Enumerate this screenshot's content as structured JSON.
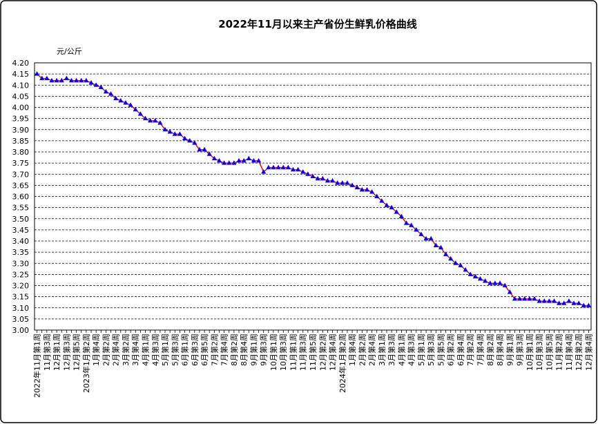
{
  "chart_data": {
    "type": "line",
    "title": "2022年11月以来主产省份生鲜乳价格曲线",
    "y_unit": "元/公斤",
    "color": "#ff0000",
    "marker_color": "#0000ff",
    "grid": true,
    "ylim": [
      3,
      4.2
    ],
    "yticks": [
      {
        "value": 3,
        "label": "3.00"
      },
      3.05,
      {
        "value": 3.1,
        "label": "3.10"
      },
      3.15,
      {
        "value": 3.2,
        "label": "3.20"
      },
      3.25,
      {
        "value": 3.3,
        "label": "3.30"
      },
      3.35,
      {
        "value": 3.4,
        "label": "3.40"
      },
      3.45,
      {
        "value": 3.5,
        "label": "3.50"
      },
      3.55,
      {
        "value": 3.6,
        "label": "3.60"
      },
      3.65,
      {
        "value": 3.7,
        "label": "3.70"
      },
      3.75,
      {
        "value": 3.8,
        "label": "3.80"
      },
      3.85,
      {
        "value": 3.9,
        "label": "3.90"
      },
      3.95,
      {
        "value": 4,
        "label": "4.00"
      },
      4.05,
      {
        "value": 4.1,
        "label": "4.10"
      },
      4.15,
      {
        "value": 4.2,
        "label": "4.20"
      }
    ],
    "categories": [
      "2022年11月第1周",
      null,
      "11月第3周",
      null,
      "12月第1周",
      null,
      "12月第3周",
      null,
      "12月第5周",
      null,
      "2023年1月第2周",
      null,
      "1月第4周",
      null,
      "2月第2周",
      null,
      "2月第4周",
      null,
      "3月第2周",
      null,
      "3月第4周",
      null,
      "4月第1周",
      null,
      "4月第3周",
      null,
      "5月第1周",
      null,
      "5月第3周",
      null,
      "6月第1周",
      null,
      "6月第3周",
      null,
      "6月第5周",
      null,
      "7月第2周",
      null,
      "7月第4周",
      null,
      "8月第2周",
      null,
      "8月第4周",
      null,
      "9月第1周",
      null,
      "9月第3周",
      null,
      "10月第1周",
      null,
      "10月第3周",
      null,
      "11月第1周",
      null,
      "11月第3周",
      null,
      "11月第5周",
      null,
      "12月第2周",
      null,
      "12月第4周",
      null,
      "2024年1月第2周",
      null,
      "1月第4周",
      null,
      "2月第2周",
      null,
      "2月第4周",
      null,
      "3月第1周",
      null,
      "3月第3周",
      null,
      "4月第1周",
      null,
      "4月第3周",
      null,
      "5月第1周",
      null,
      "5月第3周",
      null,
      "5月第5周",
      null,
      "6月第2周",
      null,
      "6月第4周",
      null,
      "7月第2周",
      null,
      "7月第4周",
      null,
      "8月第2周",
      null,
      "8月第4周",
      null,
      "9月第1周",
      null,
      "9月第3周",
      null,
      "10月第1周",
      null,
      "10月第3周",
      null,
      "10月第5周",
      null,
      "11月第2周",
      null,
      "11月第4周",
      null,
      "12月第2周",
      null,
      "12月第4周"
    ],
    "values": [
      4.15,
      4.13,
      4.13,
      4.12,
      4.12,
      4.12,
      4.13,
      4.12,
      4.12,
      4.12,
      4.12,
      4.11,
      4.1,
      4.09,
      4.07,
      4.06,
      4.04,
      4.03,
      4.02,
      4.01,
      3.99,
      3.97,
      3.95,
      3.94,
      3.94,
      3.93,
      3.9,
      3.89,
      3.88,
      3.88,
      3.86,
      3.85,
      3.84,
      3.81,
      3.81,
      3.79,
      3.77,
      3.76,
      3.75,
      3.75,
      3.75,
      3.76,
      3.76,
      3.77,
      3.76,
      3.76,
      3.71,
      3.73,
      3.73,
      3.73,
      3.73,
      3.73,
      3.72,
      3.72,
      3.71,
      3.7,
      3.69,
      3.68,
      3.68,
      3.67,
      3.67,
      3.66,
      3.66,
      3.66,
      3.65,
      3.64,
      3.63,
      3.63,
      3.62,
      3.6,
      3.58,
      3.56,
      3.55,
      3.53,
      3.51,
      3.48,
      3.47,
      3.45,
      3.43,
      3.41,
      3.41,
      3.38,
      3.37,
      3.34,
      3.32,
      3.3,
      3.29,
      3.27,
      3.25,
      3.24,
      3.23,
      3.22,
      3.21,
      3.21,
      3.21,
      3.2,
      3.17,
      3.14,
      3.14,
      3.14,
      3.14,
      3.14,
      3.13,
      3.13,
      3.13,
      3.13,
      3.12,
      3.12,
      3.13,
      3.12,
      3.12,
      3.11,
      3.11
    ]
  }
}
